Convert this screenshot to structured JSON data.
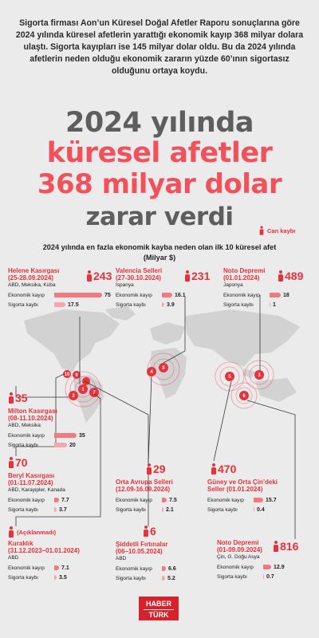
{
  "intro": "Sigorta firması Aon’un Küresel Doğal Afetler Raporu sonuçlarına göre 2024 yılında küresel afetlerin yarattığı ekonomik kayıp 368 milyar dolara ulaştı. Sigorta kayıpları ise 145 milyar dolar oldu. Bu da 2024 yılında afetlerin neden olduğu ekonomik zararın yüzde 60’ının sigortasız olduğunu ortaya koydu.",
  "headline": {
    "line1": "2024 yılında",
    "line2": "küresel afetler",
    "line3": "368 milyar dolar",
    "line4": "zarar verdi"
  },
  "legend": {
    "label": "Can kaybı"
  },
  "subtitle": {
    "line1": "2024 yılında en fazla ekonomik kayba neden olan ilk 10 küresel afet",
    "line2": "(Milyar $)"
  },
  "labels": {
    "economic": "Ekonomik kayıp",
    "insured": "Sigorta kaybı"
  },
  "colors": {
    "accent": "#e8313a",
    "economic_bar": "#f07a7f",
    "insured_bar": "#f3a9ac",
    "gray": "#5e5e5e"
  },
  "disasters": [
    {
      "rank": "1",
      "title": "Helene Kasırgası",
      "dates": "(25-28.09.2024)",
      "location": "ABD, Meksika, Küba",
      "deaths": "243",
      "economic": "75",
      "insured": "17.5",
      "economic_value": 75,
      "insured_value": 17.5
    },
    {
      "rank": "4",
      "title": "Valencia Selleri",
      "dates": "(27-30.10.2024)",
      "location": "İspanya",
      "deaths": "231",
      "economic": "16.1",
      "insured": "3.9",
      "economic_value": 16.1,
      "insured_value": 3.9
    },
    {
      "rank": "3",
      "title": "Noto Depremi",
      "dates": "(01.01.2024)",
      "location": "Japonya",
      "deaths": "489",
      "economic": "18",
      "insured": "1",
      "economic_value": 18,
      "insured_value": 1
    },
    {
      "rank": "2",
      "title": "Milton Kasırgası",
      "dates": "(08-11.10.2024)",
      "location": "ABD, Meksika",
      "deaths": "35",
      "economic": "35",
      "insured": "20",
      "economic_value": 35,
      "insured_value": 20
    },
    {
      "rank": "7",
      "title": "Beryl Kasırgası",
      "dates": "(01-11.07.2024)",
      "location": "ABD, Karayipler, Kanada",
      "deaths": "70",
      "economic": "7.7",
      "insured": "3.7",
      "economic_value": 7.7,
      "insured_value": 3.7
    },
    {
      "rank": "8",
      "title": "Orta Avrupa Selleri",
      "dates": "(12.09-16.09.2024)",
      "location": "",
      "deaths": "29",
      "economic": "7.5",
      "insured": "2.1",
      "economic_value": 7.5,
      "insured_value": 2.1
    },
    {
      "rank": "5",
      "title": "Güney ve Orta Çin’deki",
      "dates": "Seller (01.01.2024)",
      "location": "",
      "deaths": "470",
      "economic": "15.7",
      "insured": "0.4",
      "economic_value": 15.7,
      "insured_value": 0.4
    },
    {
      "rank": "9",
      "title": "Kuraklık",
      "dates": "(31.12.2023–01.01.2024)",
      "location": "ABD",
      "deaths": "(Açıklanmadı)",
      "economic": "7.1",
      "insured": "3.5",
      "economic_value": 7.1,
      "insured_value": 3.5
    },
    {
      "rank": "10",
      "title": "Şiddetli Fırtınalar",
      "dates": "(06–10.05.2024)",
      "location": "ABD",
      "deaths": "6",
      "economic": "6.6",
      "insured": "5.2",
      "economic_value": 6.6,
      "insured_value": 5.2
    },
    {
      "rank": "6",
      "title": "Noto Depremi",
      "dates": "(01-09.09.2024)",
      "location": "Çin, G. Doğu Asya",
      "deaths": "816",
      "economic": "12.9",
      "insured": "0.7",
      "economic_value": 12.9,
      "insured_value": 0.7
    }
  ],
  "logo": {
    "line1": "HABER",
    "line2": "TÜRK"
  }
}
